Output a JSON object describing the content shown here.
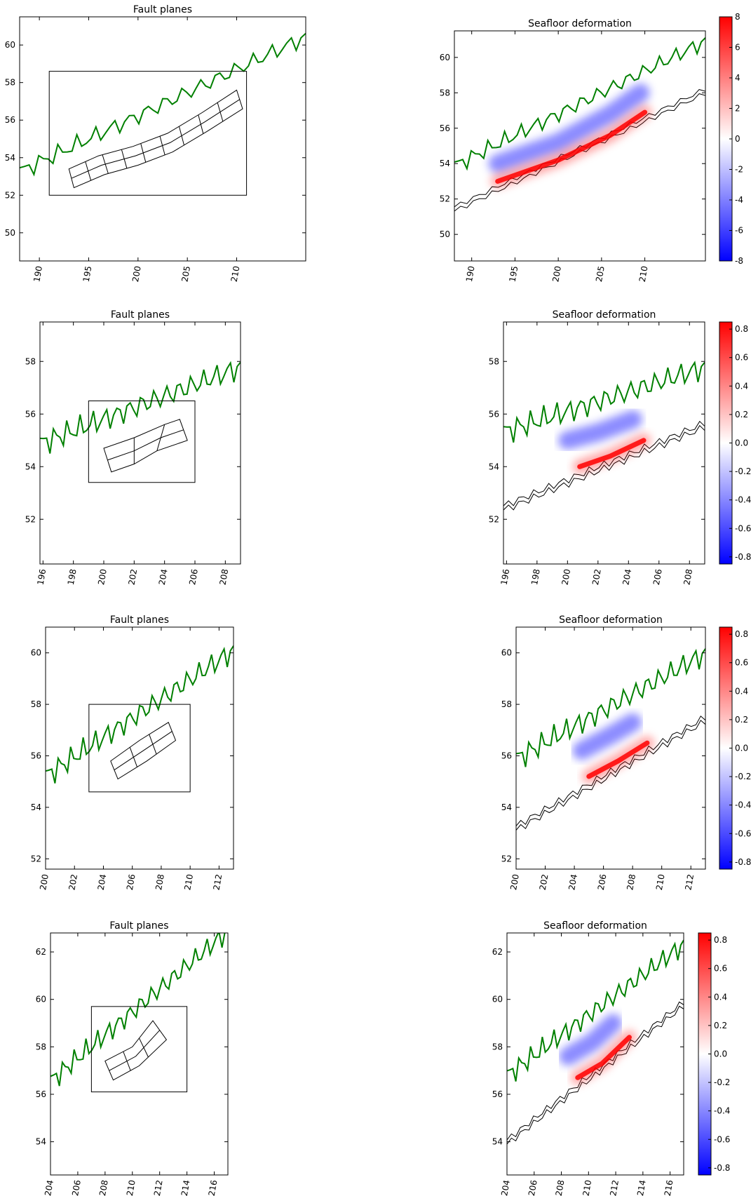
{
  "colors": {
    "coast": "#008000",
    "frame": "#000000",
    "uplift": "#ff0000",
    "subsidence": "#0000ff",
    "contour": "#000000"
  },
  "chart_data": [
    {
      "type": "map-fault-planes",
      "title": "Fault planes",
      "xlim": [
        188,
        217
      ],
      "ylim": [
        48.5,
        61.5
      ],
      "xticks": [
        190,
        195,
        200,
        205,
        210
      ],
      "yticks": [
        50,
        52,
        54,
        56,
        58,
        60
      ],
      "domain_box": {
        "x": [
          191,
          211
        ],
        "y": [
          52,
          58.6
        ]
      },
      "fault_strip": {
        "top": [
          [
            193.0,
            53.4
          ],
          [
            196.0,
            54.1
          ],
          [
            199.5,
            54.6
          ],
          [
            203.0,
            55.3
          ],
          [
            206.5,
            56.4
          ],
          [
            210.0,
            57.6
          ]
        ],
        "bottom": [
          [
            193.5,
            52.4
          ],
          [
            196.6,
            53.1
          ],
          [
            200.0,
            53.6
          ],
          [
            203.5,
            54.3
          ],
          [
            207.0,
            55.4
          ],
          [
            210.6,
            56.6
          ]
        ],
        "n_subfaults": 9
      }
    },
    {
      "type": "map-seafloor-deformation",
      "title": "Seafloor deformation",
      "xlim": [
        188,
        217
      ],
      "ylim": [
        48.5,
        61.5
      ],
      "xticks": [
        190,
        195,
        200,
        205,
        210
      ],
      "yticks": [
        50,
        52,
        54,
        56,
        58,
        60
      ],
      "colorbar": {
        "min": -8,
        "max": 8,
        "ticks": [
          -8,
          -6,
          -4,
          -2,
          0,
          2,
          4,
          6,
          8
        ]
      },
      "subsidence_band": [
        [
          193.0,
          54.0
        ],
        [
          200.0,
          55.2
        ],
        [
          206.0,
          56.8
        ],
        [
          209.5,
          58.0
        ]
      ],
      "uplift_band": [
        [
          193.0,
          53.0
        ],
        [
          200.0,
          54.2
        ],
        [
          206.0,
          55.6
        ],
        [
          210.0,
          56.9
        ]
      ]
    },
    {
      "type": "map-fault-planes",
      "title": "Fault planes",
      "xlim": [
        195.8,
        209
      ],
      "ylim": [
        50.3,
        59.5
      ],
      "xticks": [
        196,
        198,
        200,
        202,
        204,
        206,
        208
      ],
      "yticks": [
        52,
        54,
        56,
        58
      ],
      "domain_box": {
        "x": [
          199,
          206
        ],
        "y": [
          53.4,
          56.5
        ]
      },
      "fault_strip": {
        "top": [
          [
            200.0,
            54.7
          ],
          [
            202.0,
            55.1
          ],
          [
            204.0,
            55.6
          ],
          [
            205.0,
            55.8
          ]
        ],
        "bottom": [
          [
            200.5,
            53.8
          ],
          [
            202.0,
            54.1
          ],
          [
            203.5,
            54.6
          ],
          [
            205.5,
            55.0
          ]
        ],
        "n_subfaults": 3
      }
    },
    {
      "type": "map-seafloor-deformation",
      "title": "Seafloor deformation",
      "xlim": [
        195.8,
        209
      ],
      "ylim": [
        50.3,
        59.5
      ],
      "xticks": [
        196,
        198,
        200,
        202,
        204,
        206,
        208
      ],
      "yticks": [
        52,
        54,
        56,
        58
      ],
      "colorbar": {
        "min": -0.85,
        "max": 0.85,
        "ticks": [
          -0.8,
          -0.6,
          -0.4,
          -0.2,
          0.0,
          0.2,
          0.4,
          0.6,
          0.8
        ]
      },
      "subsidence_band": [
        [
          200.0,
          55.0
        ],
        [
          202.0,
          55.3
        ],
        [
          204.3,
          55.8
        ]
      ],
      "uplift_band": [
        [
          200.8,
          54.0
        ],
        [
          202.8,
          54.4
        ],
        [
          205.0,
          55.0
        ]
      ]
    },
    {
      "type": "map-fault-planes",
      "title": "Fault planes",
      "xlim": [
        200,
        213
      ],
      "ylim": [
        51.6,
        61
      ],
      "xticks": [
        200,
        202,
        204,
        206,
        208,
        210,
        212
      ],
      "yticks": [
        52,
        54,
        56,
        58,
        60
      ],
      "domain_box": {
        "x": [
          203,
          210
        ],
        "y": [
          54.6,
          58
        ]
      },
      "fault_strip": {
        "top": [
          [
            204.5,
            55.8
          ],
          [
            206.5,
            56.6
          ],
          [
            208.5,
            57.3
          ]
        ],
        "bottom": [
          [
            205.0,
            55.1
          ],
          [
            207.0,
            55.8
          ],
          [
            209.0,
            56.6
          ]
        ],
        "n_subfaults": 3
      }
    },
    {
      "type": "map-seafloor-deformation",
      "title": "Seafloor deformation",
      "xlim": [
        200,
        213
      ],
      "ylim": [
        51.6,
        61
      ],
      "xticks": [
        200,
        202,
        204,
        206,
        208,
        210,
        212
      ],
      "yticks": [
        52,
        54,
        56,
        58,
        60
      ],
      "colorbar": {
        "min": -0.85,
        "max": 0.85,
        "ticks": [
          -0.8,
          -0.6,
          -0.4,
          -0.2,
          0.0,
          0.2,
          0.4,
          0.6,
          0.8
        ]
      },
      "subsidence_band": [
        [
          204.5,
          56.2
        ],
        [
          206.5,
          56.8
        ],
        [
          208.0,
          57.3
        ]
      ],
      "uplift_band": [
        [
          205.0,
          55.2
        ],
        [
          207.0,
          55.8
        ],
        [
          209.0,
          56.5
        ]
      ]
    },
    {
      "type": "map-fault-planes",
      "title": "Fault planes",
      "xlim": [
        204,
        217
      ],
      "ylim": [
        52.6,
        62.8
      ],
      "xticks": [
        204,
        206,
        208,
        210,
        212,
        214,
        216
      ],
      "yticks": [
        54,
        56,
        58,
        60,
        62
      ],
      "domain_box": {
        "x": [
          207,
          214
        ],
        "y": [
          56.1,
          59.7
        ]
      },
      "fault_strip": {
        "top": [
          [
            208.0,
            57.4
          ],
          [
            210.0,
            58.0
          ],
          [
            211.5,
            59.1
          ]
        ],
        "bottom": [
          [
            208.6,
            56.6
          ],
          [
            210.5,
            57.2
          ],
          [
            212.5,
            58.3
          ]
        ],
        "n_subfaults": 3
      }
    },
    {
      "type": "map-seafloor-deformation",
      "title": "Seafloor deformation",
      "xlim": [
        204,
        217
      ],
      "ylim": [
        52.6,
        62.8
      ],
      "xticks": [
        204,
        206,
        208,
        210,
        212,
        214,
        216
      ],
      "yticks": [
        54,
        56,
        58,
        60,
        62
      ],
      "colorbar": {
        "min": -0.85,
        "max": 0.85,
        "ticks": [
          -0.8,
          -0.6,
          -0.4,
          -0.2,
          0.0,
          0.2,
          0.4,
          0.6,
          0.8
        ]
      },
      "subsidence_band": [
        [
          208.5,
          57.6
        ],
        [
          210.3,
          58.2
        ],
        [
          211.8,
          59.0
        ]
      ],
      "uplift_band": [
        [
          209.2,
          56.7
        ],
        [
          211.0,
          57.3
        ],
        [
          213.0,
          58.4
        ]
      ]
    }
  ]
}
